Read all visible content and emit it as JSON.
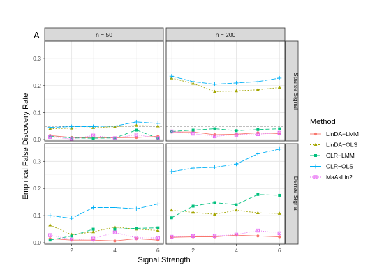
{
  "chart_data": {
    "type": "line",
    "panel_tag": "A",
    "xlabel": "Signal Strength",
    "ylabel": "Empirical False Discovery Rate",
    "x": [
      1,
      2,
      3,
      4,
      5,
      6
    ],
    "xticks": [
      2,
      4,
      6
    ],
    "xlim": [
      0.75,
      6.25
    ],
    "ylim": [
      -0.005,
      0.365
    ],
    "yticks": [
      0.0,
      0.1,
      0.2,
      0.3
    ],
    "ytick_labels": [
      "0.0",
      "0.1",
      "0.2",
      "0.3"
    ],
    "reference_line": 0.05,
    "grid": true,
    "legend_title": "Method",
    "legend_position": "right",
    "columns": [
      "n = 50",
      "n = 200"
    ],
    "rows": [
      "Sparse Signal",
      "Dense Signal"
    ],
    "series_style": [
      {
        "name": "LinDA−LMM",
        "color": "#F8766D",
        "marker": "circle",
        "dash": "0"
      },
      {
        "name": "LinDA−OLS",
        "color": "#A3A500",
        "marker": "triangle",
        "dash": "2,2"
      },
      {
        "name": "CLR−LMM",
        "color": "#00BF7D",
        "marker": "square",
        "dash": "6,3"
      },
      {
        "name": "CLR−OLS",
        "color": "#00B0F6",
        "marker": "plus",
        "dash": "7,2"
      },
      {
        "name": "MaAsLin2",
        "color": "#E76BF3",
        "marker": "boxed",
        "dash": "1,2"
      }
    ],
    "panels": [
      {
        "column": "n = 50",
        "row": "Sparse Signal",
        "series": [
          {
            "name": "LinDA−LMM",
            "values": [
              0.015,
              0.008,
              0.006,
              0.007,
              0.008,
              0.012
            ]
          },
          {
            "name": "LinDA−OLS",
            "values": [
              0.04,
              0.042,
              0.044,
              0.048,
              0.052,
              0.05
            ]
          },
          {
            "name": "CLR−LMM",
            "values": [
              0.012,
              0.006,
              0.005,
              0.006,
              0.035,
              0.005
            ]
          },
          {
            "name": "CLR−OLS",
            "values": [
              0.045,
              0.048,
              0.048,
              0.05,
              0.065,
              0.06
            ]
          },
          {
            "name": "MaAsLin2",
            "values": [
              0.01,
              0.002,
              0.015,
              0.005,
              0.018,
              0.005
            ]
          }
        ]
      },
      {
        "column": "n = 200",
        "row": "Sparse Signal",
        "series": [
          {
            "name": "LinDA−LMM",
            "values": [
              0.028,
              0.028,
              0.018,
              0.02,
              0.025,
              0.022
            ]
          },
          {
            "name": "LinDA−OLS",
            "values": [
              0.228,
              0.208,
              0.178,
              0.18,
              0.185,
              0.193
            ]
          },
          {
            "name": "CLR−LMM",
            "values": [
              0.03,
              0.035,
              0.04,
              0.033,
              0.037,
              0.04
            ]
          },
          {
            "name": "CLR−OLS",
            "values": [
              0.235,
              0.215,
              0.205,
              0.21,
              0.215,
              0.228
            ]
          },
          {
            "name": "MaAsLin2",
            "values": [
              0.03,
              0.022,
              0.012,
              0.018,
              0.02,
              0.025
            ]
          }
        ]
      },
      {
        "column": "n = 50",
        "row": "Dense Signal",
        "series": [
          {
            "name": "LinDA−LMM",
            "values": [
              0.015,
              0.01,
              0.01,
              0.007,
              0.015,
              0.01
            ]
          },
          {
            "name": "LinDA−OLS",
            "values": [
              0.065,
              0.03,
              0.04,
              0.058,
              0.05,
              0.045
            ]
          },
          {
            "name": "CLR−LMM",
            "values": [
              0.01,
              0.025,
              0.05,
              0.05,
              0.053,
              0.055
            ]
          },
          {
            "name": "CLR−OLS",
            "values": [
              0.1,
              0.09,
              0.13,
              0.13,
              0.125,
              0.143
            ]
          },
          {
            "name": "MaAsLin2",
            "values": [
              0.028,
              0.012,
              0.015,
              0.038,
              0.018,
              0.018
            ]
          }
        ]
      },
      {
        "column": "n = 200",
        "row": "Dense Signal",
        "series": [
          {
            "name": "LinDA−LMM",
            "values": [
              0.02,
              0.022,
              0.022,
              0.028,
              0.025,
              0.022
            ]
          },
          {
            "name": "LinDA−OLS",
            "values": [
              0.12,
              0.112,
              0.105,
              0.12,
              0.11,
              0.108
            ]
          },
          {
            "name": "CLR−LMM",
            "values": [
              0.092,
              0.135,
              0.148,
              0.14,
              0.178,
              0.175
            ]
          },
          {
            "name": "CLR−OLS",
            "values": [
              0.262,
              0.275,
              0.278,
              0.29,
              0.328,
              0.345
            ]
          },
          {
            "name": "MaAsLin2",
            "values": [
              0.022,
              0.025,
              0.025,
              0.03,
              0.045,
              0.035
            ]
          }
        ]
      }
    ]
  }
}
